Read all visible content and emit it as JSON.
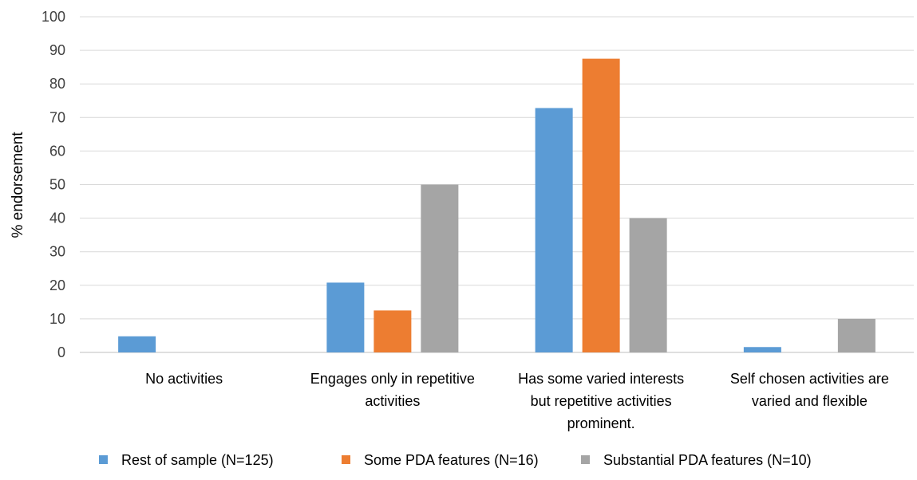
{
  "chart_data": {
    "type": "bar",
    "title": "",
    "xlabel": "",
    "ylabel": "% endorsement",
    "ylim": [
      0,
      100
    ],
    "ytick_step": 10,
    "grid": true,
    "legend_placement": "bottom",
    "categories": [
      [
        "No activities"
      ],
      [
        "Engages only in repetitive",
        "activities"
      ],
      [
        "Has some varied interests",
        "but repetitive activities",
        "prominent."
      ],
      [
        "Self chosen activities are",
        "varied and flexible"
      ]
    ],
    "series": [
      {
        "name": "Rest of sample (N=125)",
        "color": "#5B9BD5",
        "values": [
          4.8,
          20.8,
          72.8,
          1.6
        ]
      },
      {
        "name": "Some PDA features (N=16)",
        "color": "#ED7D31",
        "values": [
          0,
          12.5,
          87.5,
          0
        ]
      },
      {
        "name": "Substantial PDA features (N=10)",
        "color": "#A5A5A5",
        "values": [
          0,
          50,
          40,
          10
        ]
      }
    ]
  }
}
